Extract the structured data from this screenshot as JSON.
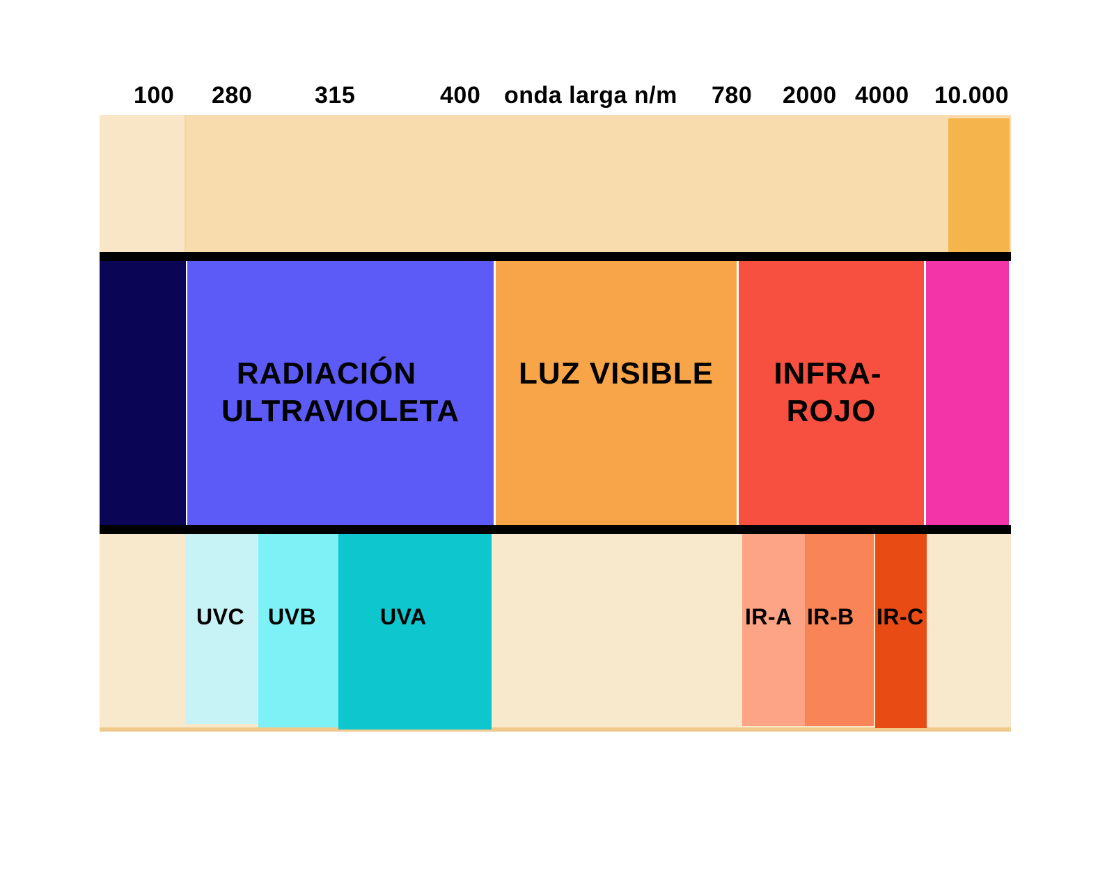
{
  "ticks": {
    "t100": "100",
    "t280": "280",
    "t315": "315",
    "t400": "400",
    "unit": "onda larga n/m",
    "t780": "780",
    "t2000": "2000",
    "t4000": "4000",
    "t10000": "10.000"
  },
  "bands": {
    "uv_line1": "RADIACIÓN",
    "uv_line2": "ULTRAVIOLETA",
    "visible": "LUZ VISIBLE",
    "ir_line1": "INFRA-",
    "ir_line2": "ROJO"
  },
  "subbands": {
    "uvc": "UVC",
    "uvb": "UVB",
    "uva": "UVA",
    "ira": "IR-A",
    "irb": "IR-B",
    "irc": "IR-C"
  },
  "colors": {
    "top_bg": "#f8dcae",
    "top_left": "#f9e6c6",
    "top_right": "#f5b44c",
    "deep_uv": "#0b0556",
    "uv": "#5c5bf7",
    "visible": "#f7a548",
    "infrared": "#f75040",
    "far_ir": "#f234a8",
    "bottom_bg": "#f8e8cc",
    "uvc": "#c8f3f6",
    "uvb": "#7ef1f7",
    "uva": "#0ec6ce",
    "ira": "#fca485",
    "irb": "#f88458",
    "irc": "#e84b14"
  }
}
